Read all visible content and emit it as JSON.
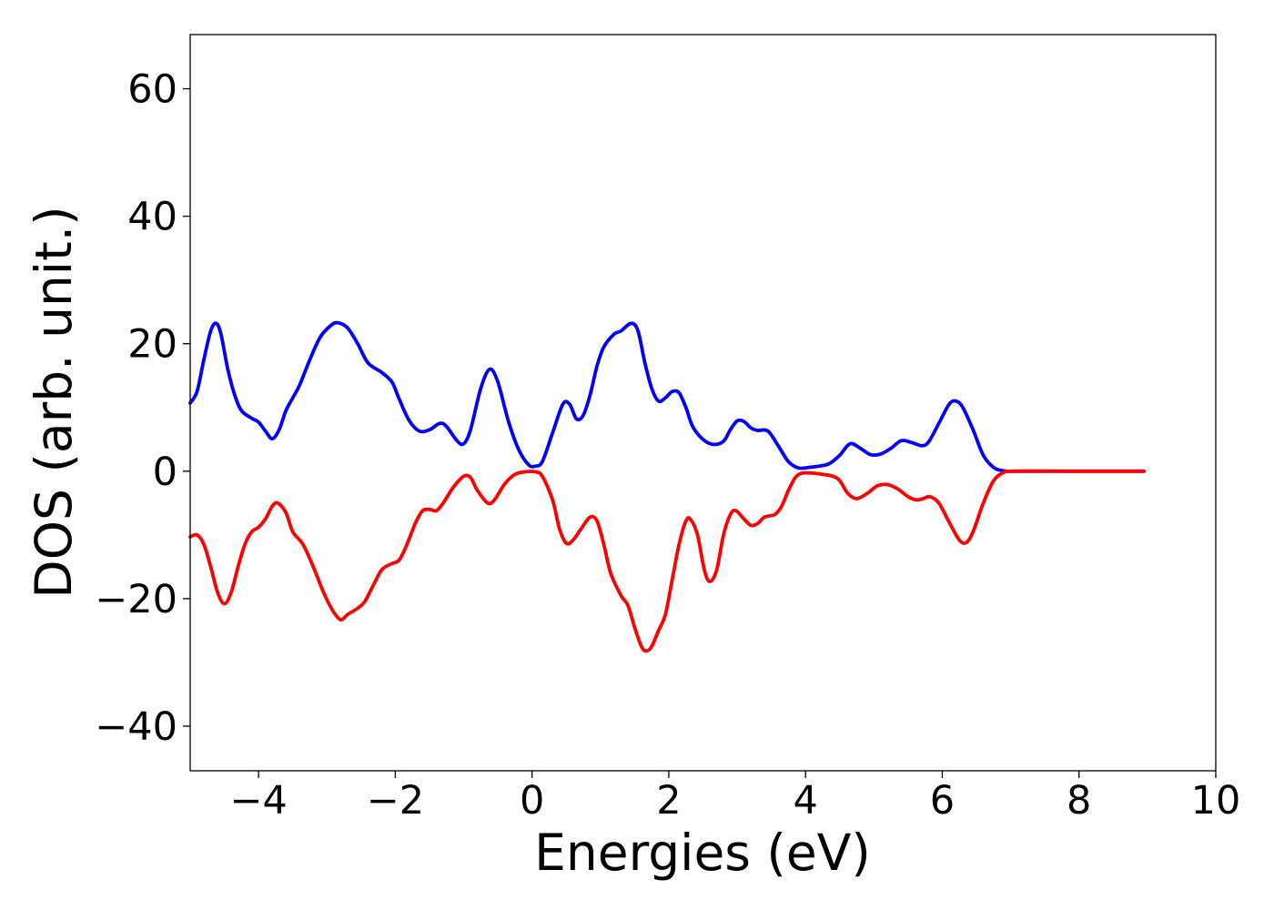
{
  "chart_data": {
    "type": "line",
    "title": "",
    "xlabel": "Energies (eV)",
    "ylabel": "DOS (arb. unit.)",
    "xlim": [
      -5,
      10
    ],
    "ylim": [
      -47,
      68.5
    ],
    "xticks": [
      -4,
      -2,
      0,
      2,
      4,
      6,
      8,
      10
    ],
    "xtick_labels": [
      "−4",
      "−2",
      "0",
      "2",
      "4",
      "6",
      "8",
      "10"
    ],
    "yticks": [
      -40,
      -20,
      0,
      20,
      40,
      60
    ],
    "ytick_labels": [
      "−40",
      "−20",
      "0",
      "20",
      "40",
      "60"
    ],
    "grid": false,
    "legend": "none",
    "series": [
      {
        "color": "#0000ff",
        "points": [
          [
            -5.0,
            10.7
          ],
          [
            -4.9,
            12.5
          ],
          [
            -4.8,
            17.5
          ],
          [
            -4.7,
            22.0
          ],
          [
            -4.62,
            23.2
          ],
          [
            -4.55,
            21.5
          ],
          [
            -4.45,
            16.0
          ],
          [
            -4.35,
            12.0
          ],
          [
            -4.25,
            9.5
          ],
          [
            -4.1,
            8.3
          ],
          [
            -4.0,
            7.7
          ],
          [
            -3.9,
            6.3
          ],
          [
            -3.8,
            5.1
          ],
          [
            -3.7,
            6.5
          ],
          [
            -3.6,
            9.5
          ],
          [
            -3.5,
            11.5
          ],
          [
            -3.4,
            13.5
          ],
          [
            -3.25,
            17.5
          ],
          [
            -3.1,
            21.0
          ],
          [
            -2.95,
            22.8
          ],
          [
            -2.85,
            23.3
          ],
          [
            -2.7,
            22.5
          ],
          [
            -2.55,
            20.0
          ],
          [
            -2.4,
            17.0
          ],
          [
            -2.2,
            15.5
          ],
          [
            -2.05,
            14.0
          ],
          [
            -1.95,
            11.5
          ],
          [
            -1.8,
            8.0
          ],
          [
            -1.65,
            6.3
          ],
          [
            -1.5,
            6.5
          ],
          [
            -1.35,
            7.5
          ],
          [
            -1.25,
            7.0
          ],
          [
            -1.1,
            4.8
          ],
          [
            -1.0,
            4.3
          ],
          [
            -0.9,
            6.5
          ],
          [
            -0.75,
            13.0
          ],
          [
            -0.62,
            16.0
          ],
          [
            -0.5,
            14.0
          ],
          [
            -0.35,
            8.0
          ],
          [
            -0.2,
            3.5
          ],
          [
            -0.05,
            1.0
          ],
          [
            0.05,
            0.8
          ],
          [
            0.15,
            1.5
          ],
          [
            0.3,
            6.0
          ],
          [
            0.45,
            10.5
          ],
          [
            0.55,
            10.5
          ],
          [
            0.65,
            8.2
          ],
          [
            0.75,
            8.8
          ],
          [
            0.85,
            12.0
          ],
          [
            0.95,
            16.5
          ],
          [
            1.05,
            19.5
          ],
          [
            1.2,
            21.5
          ],
          [
            1.3,
            22.0
          ],
          [
            1.45,
            23.2
          ],
          [
            1.55,
            22.0
          ],
          [
            1.65,
            17.0
          ],
          [
            1.75,
            13.0
          ],
          [
            1.85,
            11.0
          ],
          [
            1.95,
            11.5
          ],
          [
            2.05,
            12.5
          ],
          [
            2.15,
            12.3
          ],
          [
            2.25,
            10.0
          ],
          [
            2.35,
            7.0
          ],
          [
            2.5,
            5.0
          ],
          [
            2.65,
            4.2
          ],
          [
            2.8,
            4.7
          ],
          [
            2.9,
            6.5
          ],
          [
            3.0,
            7.9
          ],
          [
            3.1,
            7.8
          ],
          [
            3.2,
            6.8
          ],
          [
            3.3,
            6.4
          ],
          [
            3.45,
            6.3
          ],
          [
            3.6,
            4.0
          ],
          [
            3.75,
            1.5
          ],
          [
            3.9,
            0.5
          ],
          [
            4.05,
            0.6
          ],
          [
            4.2,
            0.8
          ],
          [
            4.35,
            1.2
          ],
          [
            4.5,
            2.5
          ],
          [
            4.65,
            4.3
          ],
          [
            4.8,
            3.6
          ],
          [
            4.95,
            2.6
          ],
          [
            5.1,
            2.7
          ],
          [
            5.25,
            3.6
          ],
          [
            5.4,
            4.8
          ],
          [
            5.55,
            4.5
          ],
          [
            5.7,
            4.0
          ],
          [
            5.8,
            4.6
          ],
          [
            5.95,
            7.5
          ],
          [
            6.1,
            10.5
          ],
          [
            6.2,
            11.0
          ],
          [
            6.3,
            10.0
          ],
          [
            6.45,
            6.5
          ],
          [
            6.6,
            2.5
          ],
          [
            6.75,
            0.6
          ],
          [
            6.9,
            0.05
          ],
          [
            7.1,
            0.0
          ],
          [
            8.0,
            0.0
          ],
          [
            8.95,
            0.0
          ]
        ]
      },
      {
        "color": "#ff0000",
        "points": [
          [
            -5.0,
            -10.3
          ],
          [
            -4.9,
            -10.0
          ],
          [
            -4.8,
            -11.5
          ],
          [
            -4.7,
            -15.0
          ],
          [
            -4.6,
            -19.0
          ],
          [
            -4.5,
            -20.8
          ],
          [
            -4.4,
            -19.0
          ],
          [
            -4.3,
            -15.0
          ],
          [
            -4.2,
            -11.5
          ],
          [
            -4.1,
            -9.5
          ],
          [
            -4.0,
            -8.8
          ],
          [
            -3.9,
            -7.5
          ],
          [
            -3.8,
            -5.5
          ],
          [
            -3.72,
            -5.0
          ],
          [
            -3.6,
            -6.5
          ],
          [
            -3.5,
            -9.5
          ],
          [
            -3.35,
            -11.5
          ],
          [
            -3.2,
            -15.0
          ],
          [
            -3.05,
            -19.0
          ],
          [
            -2.92,
            -21.8
          ],
          [
            -2.8,
            -23.3
          ],
          [
            -2.7,
            -22.5
          ],
          [
            -2.55,
            -21.5
          ],
          [
            -2.45,
            -20.5
          ],
          [
            -2.35,
            -18.5
          ],
          [
            -2.2,
            -15.5
          ],
          [
            -2.05,
            -14.5
          ],
          [
            -1.95,
            -14.0
          ],
          [
            -1.85,
            -12.0
          ],
          [
            -1.7,
            -8.0
          ],
          [
            -1.6,
            -6.2
          ],
          [
            -1.5,
            -6.0
          ],
          [
            -1.4,
            -6.2
          ],
          [
            -1.3,
            -5.0
          ],
          [
            -1.15,
            -2.5
          ],
          [
            -1.0,
            -0.8
          ],
          [
            -0.9,
            -1.0
          ],
          [
            -0.8,
            -3.0
          ],
          [
            -0.65,
            -5.0
          ],
          [
            -0.55,
            -4.5
          ],
          [
            -0.4,
            -2.0
          ],
          [
            -0.25,
            -0.5
          ],
          [
            -0.1,
            -0.1
          ],
          [
            0.05,
            -0.1
          ],
          [
            0.15,
            -0.8
          ],
          [
            0.3,
            -4.5
          ],
          [
            0.4,
            -9.0
          ],
          [
            0.5,
            -11.3
          ],
          [
            0.6,
            -10.8
          ],
          [
            0.72,
            -9.0
          ],
          [
            0.85,
            -7.2
          ],
          [
            0.95,
            -7.8
          ],
          [
            1.05,
            -11.5
          ],
          [
            1.15,
            -16.0
          ],
          [
            1.3,
            -19.5
          ],
          [
            1.4,
            -21.0
          ],
          [
            1.5,
            -24.5
          ],
          [
            1.6,
            -27.5
          ],
          [
            1.67,
            -28.2
          ],
          [
            1.75,
            -27.5
          ],
          [
            1.85,
            -25.0
          ],
          [
            1.95,
            -22.5
          ],
          [
            2.05,
            -17.0
          ],
          [
            2.15,
            -11.5
          ],
          [
            2.25,
            -7.8
          ],
          [
            2.32,
            -7.6
          ],
          [
            2.42,
            -10.0
          ],
          [
            2.52,
            -15.5
          ],
          [
            2.6,
            -17.3
          ],
          [
            2.7,
            -15.5
          ],
          [
            2.8,
            -10.0
          ],
          [
            2.9,
            -6.8
          ],
          [
            2.98,
            -6.2
          ],
          [
            3.1,
            -7.5
          ],
          [
            3.2,
            -8.5
          ],
          [
            3.3,
            -8.2
          ],
          [
            3.4,
            -7.2
          ],
          [
            3.55,
            -6.8
          ],
          [
            3.65,
            -5.5
          ],
          [
            3.75,
            -3.0
          ],
          [
            3.85,
            -1.0
          ],
          [
            3.95,
            -0.3
          ],
          [
            4.1,
            -0.3
          ],
          [
            4.25,
            -0.5
          ],
          [
            4.4,
            -0.8
          ],
          [
            4.5,
            -1.5
          ],
          [
            4.62,
            -3.5
          ],
          [
            4.75,
            -4.3
          ],
          [
            4.9,
            -3.5
          ],
          [
            5.05,
            -2.3
          ],
          [
            5.2,
            -2.1
          ],
          [
            5.35,
            -2.8
          ],
          [
            5.5,
            -4.0
          ],
          [
            5.62,
            -4.5
          ],
          [
            5.72,
            -4.3
          ],
          [
            5.82,
            -4.0
          ],
          [
            5.95,
            -5.0
          ],
          [
            6.1,
            -8.0
          ],
          [
            6.25,
            -10.8
          ],
          [
            6.35,
            -11.2
          ],
          [
            6.45,
            -9.5
          ],
          [
            6.6,
            -5.0
          ],
          [
            6.75,
            -1.5
          ],
          [
            6.9,
            -0.2
          ],
          [
            7.05,
            0.0
          ],
          [
            8.0,
            0.0
          ],
          [
            8.95,
            0.0
          ]
        ]
      }
    ]
  }
}
